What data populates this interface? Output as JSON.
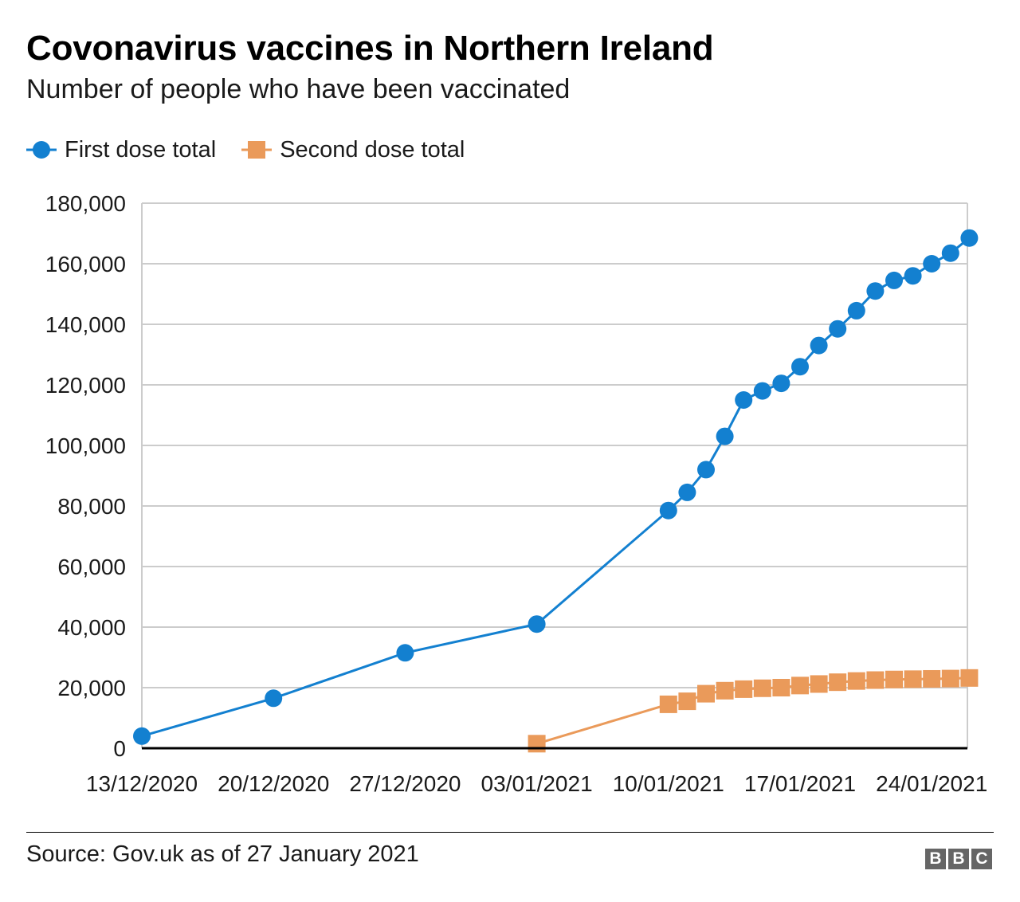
{
  "chart_data": {
    "type": "line",
    "title": "Covonavirus vaccines in Northern Ireland",
    "subtitle": "Number of people who have been vaccinated",
    "source": "Source: Gov.uk as of 27 January 2021",
    "xlabel": "",
    "ylabel": "",
    "ylim": [
      0,
      180000
    ],
    "yticks": [
      0,
      20000,
      40000,
      60000,
      80000,
      100000,
      120000,
      140000,
      160000,
      180000
    ],
    "ytick_labels": [
      "0",
      "20,000",
      "40,000",
      "60,000",
      "80,000",
      "100,000",
      "120,000",
      "140,000",
      "160,000",
      "180,000"
    ],
    "xlim_days": [
      0,
      45
    ],
    "xticks": [
      {
        "day": 0,
        "label": "13/12/2020"
      },
      {
        "day": 7,
        "label": "20/12/2020"
      },
      {
        "day": 14,
        "label": "27/12/2020"
      },
      {
        "day": 21,
        "label": "03/01/2021"
      },
      {
        "day": 28,
        "label": "10/01/2021"
      },
      {
        "day": 35,
        "label": "17/01/2021"
      },
      {
        "day": 42,
        "label": "24/01/2021"
      }
    ],
    "grid": true,
    "legend_position": "top-left",
    "series": [
      {
        "name": "First dose total",
        "color": "#1380d0",
        "marker": "circle",
        "points": [
          {
            "date": "13/12/2020",
            "day": 0,
            "value": 4000
          },
          {
            "date": "20/12/2020",
            "day": 7,
            "value": 16500
          },
          {
            "date": "27/12/2020",
            "day": 14,
            "value": 31500
          },
          {
            "date": "03/01/2021",
            "day": 21,
            "value": 41000
          },
          {
            "date": "10/01/2021",
            "day": 28,
            "value": 78500
          },
          {
            "date": "11/01/2021",
            "day": 29,
            "value": 84500
          },
          {
            "date": "12/01/2021",
            "day": 30,
            "value": 92000
          },
          {
            "date": "13/01/2021",
            "day": 31,
            "value": 103000
          },
          {
            "date": "14/01/2021",
            "day": 32,
            "value": 115000
          },
          {
            "date": "15/01/2021",
            "day": 33,
            "value": 118000
          },
          {
            "date": "16/01/2021",
            "day": 34,
            "value": 120500
          },
          {
            "date": "17/01/2021",
            "day": 35,
            "value": 126000
          },
          {
            "date": "18/01/2021",
            "day": 36,
            "value": 133000
          },
          {
            "date": "19/01/2021",
            "day": 37,
            "value": 138500
          },
          {
            "date": "20/01/2021",
            "day": 38,
            "value": 144500
          },
          {
            "date": "21/01/2021",
            "day": 39,
            "value": 151000
          },
          {
            "date": "22/01/2021",
            "day": 40,
            "value": 154500
          },
          {
            "date": "23/01/2021",
            "day": 41,
            "value": 156000
          },
          {
            "date": "24/01/2021",
            "day": 42,
            "value": 160000
          },
          {
            "date": "25/01/2021",
            "day": 43,
            "value": 163500
          },
          {
            "date": "26/01/2021",
            "day": 44,
            "value": 168500
          }
        ]
      },
      {
        "name": "Second dose total",
        "color": "#ea9a5a",
        "marker": "square",
        "points": [
          {
            "date": "03/01/2021",
            "day": 21,
            "value": 1500
          },
          {
            "date": "10/01/2021",
            "day": 28,
            "value": 14500
          },
          {
            "date": "11/01/2021",
            "day": 29,
            "value": 15500
          },
          {
            "date": "12/01/2021",
            "day": 30,
            "value": 18000
          },
          {
            "date": "13/01/2021",
            "day": 31,
            "value": 19000
          },
          {
            "date": "14/01/2021",
            "day": 32,
            "value": 19500
          },
          {
            "date": "15/01/2021",
            "day": 33,
            "value": 19800
          },
          {
            "date": "16/01/2021",
            "day": 34,
            "value": 20000
          },
          {
            "date": "17/01/2021",
            "day": 35,
            "value": 20700
          },
          {
            "date": "18/01/2021",
            "day": 36,
            "value": 21200
          },
          {
            "date": "19/01/2021",
            "day": 37,
            "value": 21800
          },
          {
            "date": "20/01/2021",
            "day": 38,
            "value": 22200
          },
          {
            "date": "21/01/2021",
            "day": 39,
            "value": 22500
          },
          {
            "date": "22/01/2021",
            "day": 40,
            "value": 22700
          },
          {
            "date": "23/01/2021",
            "day": 41,
            "value": 22800
          },
          {
            "date": "24/01/2021",
            "day": 42,
            "value": 22900
          },
          {
            "date": "25/01/2021",
            "day": 43,
            "value": 23000
          },
          {
            "date": "26/01/2021",
            "day": 44,
            "value": 23200
          }
        ]
      }
    ]
  },
  "brand": {
    "letters": [
      "B",
      "B",
      "C"
    ],
    "color": "#666666"
  }
}
